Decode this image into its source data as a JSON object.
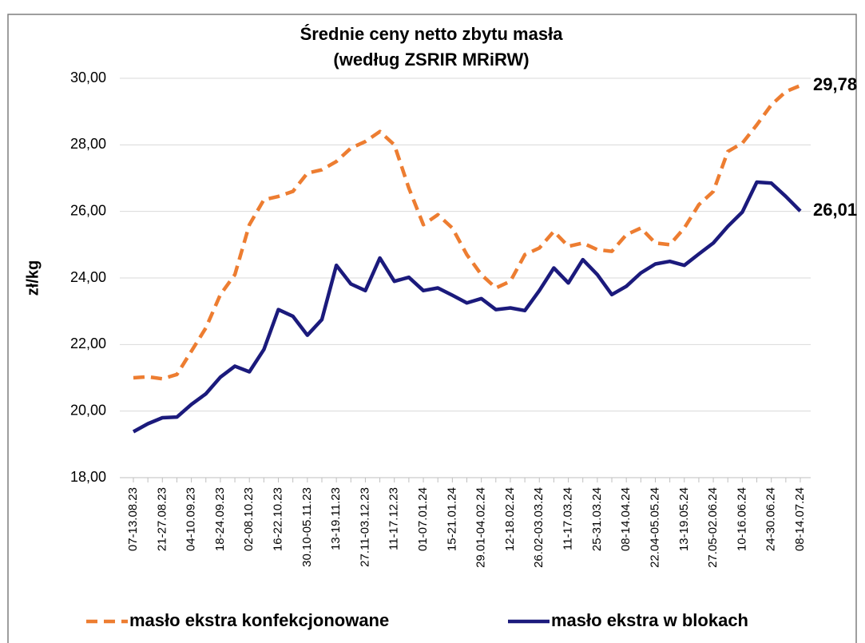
{
  "chart_data": {
    "type": "line",
    "title": "Średnie ceny netto zbytu masła",
    "subtitle": "(według ZSRIR MRiRW)",
    "y_label": "zł/kg",
    "categories": [
      "07-13.08.23",
      null,
      "21-27.08.23",
      null,
      "04-10.09.23",
      null,
      "18-24.09.23",
      null,
      "02-08.10.23",
      null,
      "16-22.10.23",
      null,
      "30.10-05.11.23",
      null,
      "13-19.11.23",
      null,
      "27.11-03.12.23",
      null,
      "11-17.12.23",
      null,
      "01-07.01.24",
      null,
      "15-21.01.24",
      null,
      "29.01-04.02.24",
      null,
      "12-18.02.24",
      null,
      "26.02-03.03.24",
      null,
      "11-17.03.24",
      null,
      "25-31.03.24",
      null,
      "08-14.04.24",
      null,
      "22.04-05.05.24",
      null,
      "13-19.05.24",
      null,
      "27.05-02.06.24",
      null,
      "10-16.06.24",
      null,
      "24-30.06.24",
      null,
      "08-14.07.24"
    ],
    "series": [
      {
        "name": "masło ekstra konfekcjonowane",
        "color": "#ed7d31",
        "dashed": true,
        "values": [
          21.0,
          21.03,
          20.97,
          21.1,
          21.8,
          22.5,
          23.5,
          24.1,
          25.6,
          26.35,
          26.45,
          26.6,
          27.15,
          27.25,
          27.5,
          27.9,
          28.1,
          28.4,
          28.0,
          26.7,
          25.6,
          25.9,
          25.5,
          24.7,
          24.1,
          23.7,
          23.9,
          24.7,
          24.9,
          25.4,
          24.95,
          25.05,
          24.85,
          24.8,
          25.3,
          25.5,
          25.05,
          25.0,
          25.5,
          26.2,
          26.6,
          27.8,
          28.05,
          28.6,
          29.2,
          29.6,
          29.78
        ],
        "value_labels": [
          null,
          null,
          null,
          null,
          null,
          null,
          null,
          null,
          null,
          null,
          null,
          null,
          null,
          null,
          null,
          null,
          null,
          null,
          null,
          null,
          null,
          null,
          null,
          null,
          null,
          null,
          null,
          null,
          null,
          null,
          null,
          null,
          null,
          null,
          null,
          null,
          null,
          null,
          null,
          null,
          null,
          null,
          null,
          null,
          null,
          null,
          "29,78"
        ]
      },
      {
        "name": "masło ekstra w blokach",
        "color": "#1b1a7c",
        "dashed": false,
        "values": [
          19.38,
          19.62,
          19.8,
          19.82,
          20.2,
          20.52,
          21.02,
          21.35,
          21.18,
          21.85,
          23.05,
          22.85,
          22.28,
          22.75,
          24.38,
          23.82,
          23.62,
          24.6,
          23.9,
          24.02,
          23.62,
          23.7,
          23.48,
          23.25,
          23.38,
          23.05,
          23.1,
          23.02,
          23.62,
          24.3,
          23.85,
          24.55,
          24.1,
          23.5,
          23.75,
          24.15,
          24.42,
          24.5,
          24.38,
          24.72,
          25.05,
          25.55,
          25.98,
          26.88,
          26.85,
          26.45,
          26.01
        ],
        "value_labels": [
          null,
          null,
          null,
          null,
          null,
          null,
          null,
          null,
          null,
          null,
          null,
          null,
          null,
          null,
          null,
          null,
          null,
          null,
          null,
          null,
          null,
          null,
          null,
          null,
          null,
          null,
          null,
          null,
          null,
          null,
          null,
          null,
          null,
          null,
          null,
          null,
          null,
          null,
          null,
          null,
          null,
          null,
          null,
          null,
          null,
          null,
          "26,01"
        ]
      }
    ],
    "ylim": [
      18,
      30
    ],
    "yticks": [
      {
        "value": 18,
        "label": "18,00"
      },
      {
        "value": 20,
        "label": "20,00"
      },
      {
        "value": 22,
        "label": "22,00"
      },
      {
        "value": 24,
        "label": "24,00"
      },
      {
        "value": 26,
        "label": "26,00"
      },
      {
        "value": 28,
        "label": "28,00"
      },
      {
        "value": 30,
        "label": "30,00"
      }
    ],
    "grid": true,
    "legend": "bottom"
  }
}
